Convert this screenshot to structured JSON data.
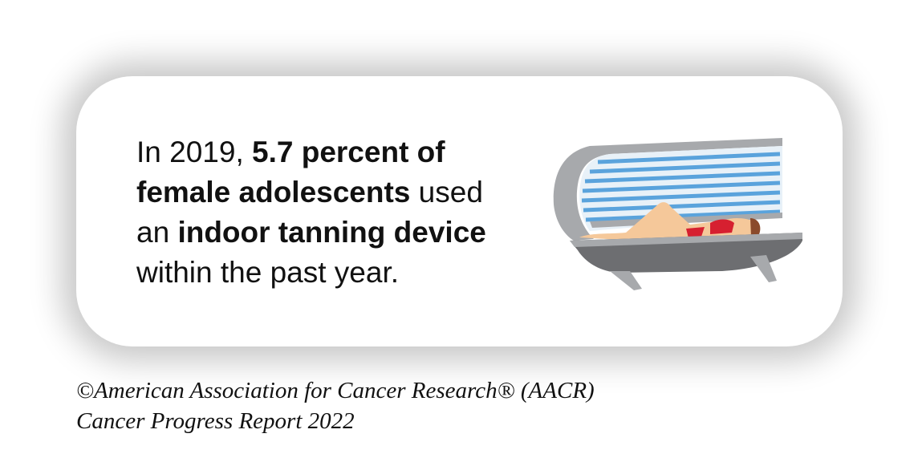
{
  "statement": {
    "lines": [
      [
        {
          "text": "In 2019, ",
          "bold": false
        },
        {
          "text": "5.7 percent of",
          "bold": true
        }
      ],
      [
        {
          "text": "female adolescents",
          "bold": true
        },
        {
          "text": " used",
          "bold": false
        }
      ],
      [
        {
          "text": "an ",
          "bold": false
        },
        {
          "text": "indoor tanning device",
          "bold": true
        }
      ],
      [
        {
          "text": "within the past year.",
          "bold": false
        }
      ]
    ]
  },
  "credit": {
    "lines": [
      "©American Association for Cancer Research® (AACR)",
      "Cancer Progress Report 2022"
    ]
  }
}
